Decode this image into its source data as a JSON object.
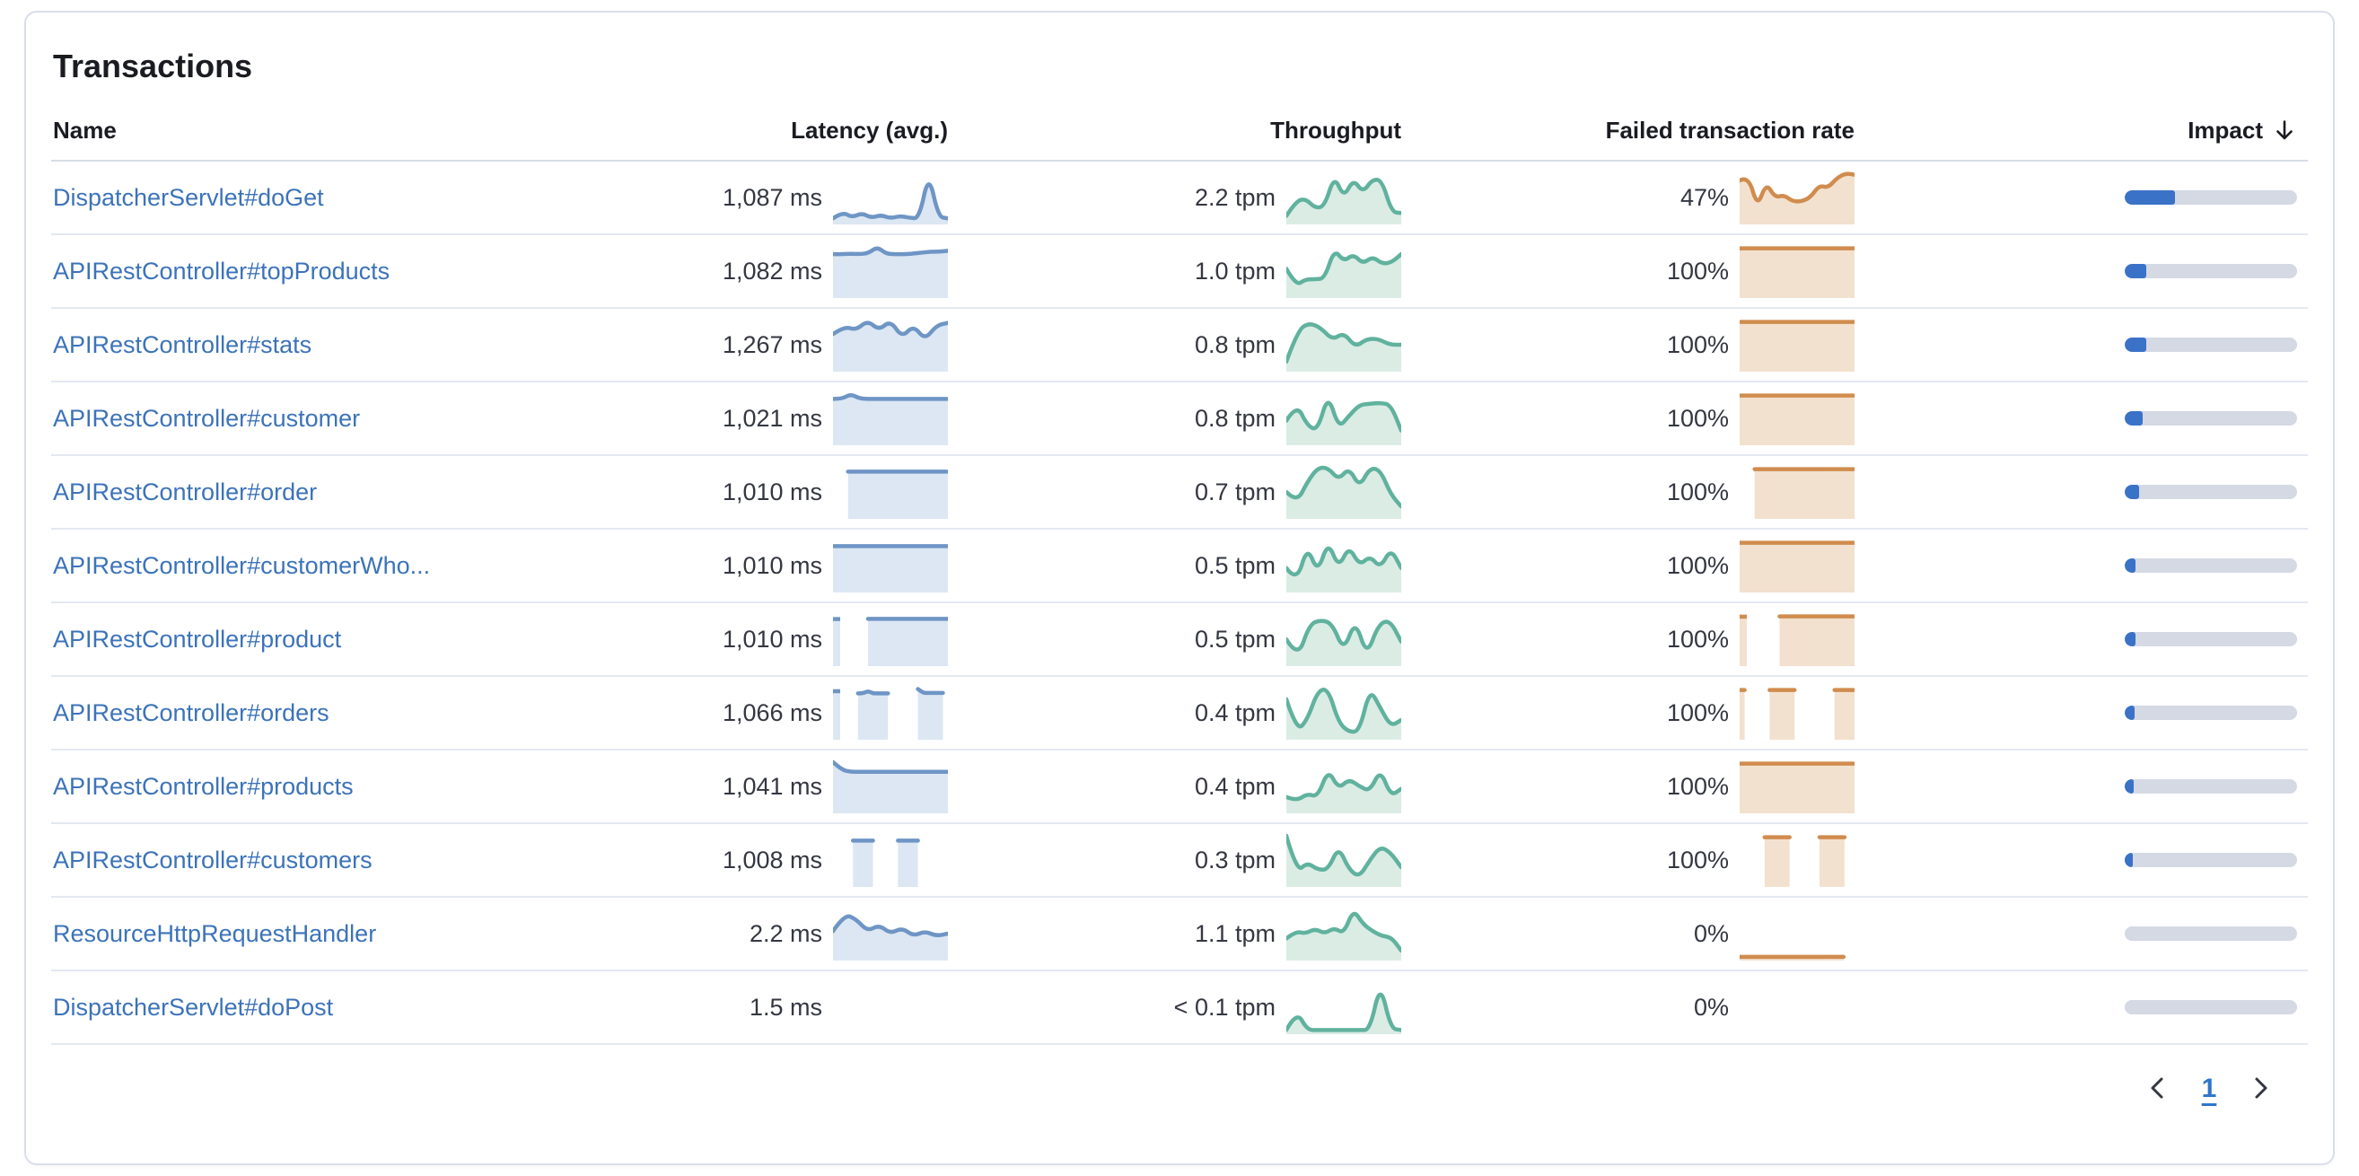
{
  "panel": {
    "title": "Transactions"
  },
  "table": {
    "columns": [
      {
        "label": "Name",
        "align": "left"
      },
      {
        "label": "Latency (avg.)",
        "align": "right"
      },
      {
        "label": "Throughput",
        "align": "right"
      },
      {
        "label": "Failed transaction rate",
        "align": "right"
      },
      {
        "label": "Impact",
        "align": "right",
        "sorted": "desc"
      }
    ],
    "rows": [
      {
        "name": "DispatcherServlet#doGet",
        "latency": "1,087 ms",
        "latency_spark": {
          "color": "blue",
          "values": [
            0.07,
            0.2,
            0.09,
            0.18,
            0.08,
            0.14,
            0.07,
            0.12,
            0.08,
            0.07,
            1.0,
            0.1,
            0.07
          ]
        },
        "throughput": "2.2 tpm",
        "throughput_spark": {
          "color": "green",
          "values": [
            0.12,
            0.42,
            0.48,
            0.28,
            0.32,
            0.95,
            0.5,
            0.88,
            0.6,
            0.88,
            0.85,
            0.2,
            0.18
          ]
        },
        "failed_rate": "47%",
        "failed_spark": {
          "color": "orange",
          "values": [
            0.85,
            0.95,
            0.3,
            0.8,
            0.5,
            0.55,
            0.42,
            0.42,
            0.5,
            0.75,
            0.7,
            0.9,
            1.0,
            0.97
          ]
        },
        "impact_pct": 29
      },
      {
        "name": "APIRestController#topProducts",
        "latency": "1,082 ms",
        "latency_spark": {
          "color": "blue",
          "values": [
            0.85,
            0.85,
            0.86,
            0.85,
            0.87,
            1.0,
            0.86,
            0.85,
            0.85,
            0.86,
            0.88,
            0.9,
            0.9,
            0.92
          ]
        },
        "throughput": "1.0 tpm",
        "throughput_spark": {
          "color": "green",
          "values": [
            0.55,
            0.2,
            0.33,
            0.33,
            0.35,
            0.95,
            0.7,
            0.85,
            0.65,
            0.8,
            0.65,
            0.68,
            0.85
          ]
        },
        "failed_rate": "100%",
        "failed_spark": {
          "color": "orange",
          "values": [
            0.97,
            0.97,
            0.97,
            0.97,
            0.97,
            0.97,
            0.97,
            0.97,
            0.97,
            0.97,
            0.97,
            0.97,
            0.97,
            0.97
          ]
        },
        "impact_pct": 12.5
      },
      {
        "name": "APIRestController#stats",
        "latency": "1,267 ms",
        "latency_spark": {
          "color": "blue",
          "values": [
            0.72,
            0.88,
            0.8,
            1.0,
            0.8,
            1.0,
            0.65,
            0.9,
            0.6,
            0.9,
            0.95
          ]
        },
        "throughput": "0.8 tpm",
        "throughput_spark": {
          "color": "green",
          "values": [
            0.15,
            0.8,
            0.95,
            0.85,
            0.6,
            0.75,
            0.45,
            0.62,
            0.62,
            0.5,
            0.5
          ]
        },
        "failed_rate": "100%",
        "failed_spark": {
          "color": "orange",
          "values": [
            0.97,
            0.97,
            0.97,
            0.97,
            0.97,
            0.97,
            0.97,
            0.97,
            0.97,
            0.97,
            0.97,
            0.97,
            0.97,
            0.97
          ]
        },
        "impact_pct": 12.5
      },
      {
        "name": "APIRestController#customer",
        "latency": "1,021 ms",
        "latency_spark": {
          "color": "blue",
          "values": [
            0.9,
            0.9,
            1.0,
            0.91,
            0.9,
            0.9,
            0.9,
            0.9,
            0.9,
            0.9,
            0.9,
            0.9,
            0.9,
            0.9
          ]
        },
        "throughput": "0.8 tpm",
        "throughput_spark": {
          "color": "green",
          "values": [
            0.45,
            0.8,
            0.35,
            0.25,
            1.0,
            0.3,
            0.55,
            0.78,
            0.8,
            0.82,
            0.78,
            0.25
          ]
        },
        "failed_rate": "100%",
        "failed_spark": {
          "color": "orange",
          "values": [
            0.97,
            0.97,
            0.97,
            0.97,
            0.97,
            0.97,
            0.97,
            0.97,
            0.97,
            0.97,
            0.97,
            0.97,
            0.97,
            0.97
          ]
        },
        "impact_pct": 10.5
      },
      {
        "name": "APIRestController#order",
        "latency": "1,010 ms",
        "latency_spark": {
          "color": "blue",
          "values": [
            null,
            null,
            null,
            0.92,
            0.92,
            0.92,
            0.92,
            0.92,
            0.92,
            0.92,
            0.92,
            0.92,
            0.92,
            0.92,
            0.92,
            0.92,
            0.92,
            0.92,
            0.92,
            0.92,
            0.92,
            0.92,
            0.92,
            0.92
          ]
        },
        "throughput": "0.7 tpm",
        "throughput_spark": {
          "color": "green",
          "values": [
            0.5,
            0.28,
            0.7,
            1.0,
            1.0,
            0.75,
            1.0,
            0.6,
            1.0,
            0.95,
            0.45,
            0.2
          ]
        },
        "failed_rate": "100%",
        "failed_spark": {
          "color": "orange",
          "values": [
            null,
            null,
            null,
            0.97,
            0.97,
            0.97,
            0.97,
            0.97,
            0.97,
            0.97,
            0.97,
            0.97,
            0.97,
            0.97,
            0.97,
            0.97,
            0.97,
            0.97,
            0.97,
            0.97,
            0.97,
            0.97,
            0.97,
            0.97
          ]
        },
        "impact_pct": 8.5
      },
      {
        "name": "APIRestController#customerWho...",
        "latency": "1,010 ms",
        "latency_spark": {
          "color": "blue",
          "values": [
            0.9,
            0.9,
            0.9,
            0.9,
            0.9,
            0.9,
            0.9,
            0.9,
            0.9,
            0.9,
            0.9,
            0.9,
            0.9,
            0.9
          ]
        },
        "throughput": "0.5 tpm",
        "throughput_spark": {
          "color": "green",
          "values": [
            0.45,
            0.15,
            0.9,
            0.35,
            1.0,
            0.45,
            0.9,
            0.5,
            0.7,
            0.45,
            0.85,
            0.45
          ]
        },
        "failed_rate": "100%",
        "failed_spark": {
          "color": "orange",
          "values": [
            0.97,
            0.97,
            0.97,
            0.97,
            0.97,
            0.97,
            0.97,
            0.97,
            0.97,
            0.97,
            0.97,
            0.97,
            0.97,
            0.97
          ]
        },
        "impact_pct": 6.5
      },
      {
        "name": "APIRestController#product",
        "latency": "1,010 ms",
        "latency_spark": {
          "color": "blue",
          "values": [
            0.92,
            null,
            null,
            null,
            null,
            null,
            null,
            0.92,
            0.92,
            0.92,
            0.92,
            0.92,
            0.92,
            0.92,
            0.92,
            0.92,
            0.92,
            0.92,
            0.92,
            0.92,
            0.92,
            0.92,
            0.92,
            0.92
          ]
        },
        "throughput": "0.5 tpm",
        "throughput_spark": {
          "color": "green",
          "values": [
            0.5,
            0.1,
            0.8,
            0.9,
            0.82,
            0.25,
            0.9,
            0.15,
            0.8,
            0.9,
            0.45
          ]
        },
        "failed_rate": "100%",
        "failed_spark": {
          "color": "orange",
          "values": [
            0.97,
            null,
            null,
            null,
            null,
            null,
            null,
            null,
            0.97,
            0.97,
            0.97,
            0.97,
            0.97,
            0.97,
            0.97,
            0.97,
            0.97,
            0.97,
            0.97,
            0.97,
            0.97,
            0.97,
            0.97,
            0.97
          ]
        },
        "impact_pct": 6
      },
      {
        "name": "APIRestController#orders",
        "latency": "1,066 ms",
        "latency_spark": {
          "color": "blue",
          "values": [
            0.95,
            null,
            null,
            null,
            null,
            0.9,
            0.9,
            0.95,
            0.9,
            0.9,
            0.9,
            0.9,
            null,
            null,
            null,
            null,
            null,
            0.99,
            0.91,
            0.91,
            0.91,
            0.91,
            0.91,
            null
          ]
        },
        "throughput": "0.4 tpm",
        "throughput_spark": {
          "color": "green",
          "values": [
            0.78,
            0.12,
            0.35,
            0.95,
            1.0,
            0.3,
            0.1,
            0.12,
            1.0,
            0.6,
            0.22,
            0.35
          ]
        },
        "failed_rate": "100%",
        "failed_spark": {
          "color": "orange",
          "values": [
            0.97,
            0.97,
            null,
            null,
            null,
            null,
            0.97,
            0.97,
            0.97,
            0.97,
            0.97,
            0.97,
            null,
            null,
            null,
            null,
            null,
            null,
            null,
            0.97,
            0.97,
            0.97,
            0.97,
            0.97
          ]
        },
        "impact_pct": 5.5
      },
      {
        "name": "APIRestController#products",
        "latency": "1,041 ms",
        "latency_spark": {
          "color": "blue",
          "values": [
            1.0,
            0.84,
            0.8,
            0.8,
            0.8,
            0.8,
            0.8,
            0.8,
            0.8,
            0.8,
            0.8,
            0.8,
            0.8,
            0.8
          ]
        },
        "throughput": "0.4 tpm",
        "throughput_spark": {
          "color": "green",
          "values": [
            0.28,
            0.2,
            0.35,
            0.28,
            0.85,
            0.45,
            0.65,
            0.5,
            0.4,
            0.85,
            0.3,
            0.45
          ]
        },
        "failed_rate": "100%",
        "failed_spark": {
          "color": "orange",
          "values": [
            0.97,
            0.97,
            0.97,
            0.97,
            0.97,
            0.97,
            0.97,
            0.97,
            0.97,
            0.97,
            0.97,
            0.97,
            0.97,
            0.97
          ]
        },
        "impact_pct": 5
      },
      {
        "name": "APIRestController#customers",
        "latency": "1,008 ms",
        "latency_spark": {
          "color": "blue",
          "values": [
            null,
            null,
            null,
            null,
            0.9,
            0.9,
            0.9,
            0.9,
            0.9,
            null,
            null,
            null,
            null,
            0.9,
            0.9,
            0.9,
            0.9,
            0.9,
            null,
            null,
            null,
            null,
            null,
            null
          ]
        },
        "throughput": "0.3 tpm",
        "throughput_spark": {
          "color": "green",
          "values": [
            1.0,
            0.25,
            0.45,
            0.3,
            0.3,
            0.78,
            0.3,
            0.15,
            0.5,
            0.78,
            0.65,
            0.35
          ]
        },
        "failed_rate": "100%",
        "failed_spark": {
          "color": "orange",
          "values": [
            null,
            null,
            null,
            null,
            null,
            0.97,
            0.97,
            0.97,
            0.97,
            0.97,
            0.97,
            null,
            null,
            null,
            null,
            null,
            0.97,
            0.97,
            0.97,
            0.97,
            0.97,
            0.97,
            null,
            null
          ]
        },
        "impact_pct": 4.5
      },
      {
        "name": "ResourceHttpRequestHandler",
        "latency": "2.2 ms",
        "latency_spark": {
          "color": "blue",
          "values": [
            0.55,
            0.9,
            0.8,
            0.55,
            0.68,
            0.5,
            0.62,
            0.45,
            0.55,
            0.45,
            0.5
          ]
        },
        "throughput": "1.1 tpm",
        "throughput_spark": {
          "color": "green",
          "values": [
            0.4,
            0.55,
            0.5,
            0.6,
            0.5,
            0.62,
            0.5,
            1.0,
            0.7,
            0.55,
            0.45,
            0.42,
            0.15
          ]
        },
        "failed_rate": "0%",
        "failed_spark": {
          "color": "orange",
          "values": [
            0.02,
            0.02,
            0.02,
            0.02,
            0.02,
            0.02,
            0.02,
            0.02,
            0.02,
            0.02,
            0.02,
            0.02,
            0.02,
            0.02,
            0.02,
            0.02,
            0.02,
            0.02,
            0.02,
            0.02,
            null,
            null
          ]
        },
        "impact_pct": 0
      },
      {
        "name": "DispatcherServlet#doPost",
        "latency": "1.5 ms",
        "latency_spark": null,
        "throughput": "< 0.1 tpm",
        "throughput_spark": {
          "color": "green",
          "values": [
            0.03,
            0.42,
            0.03,
            0.03,
            0.03,
            0.03,
            0.03,
            0.03,
            0.03,
            1.0,
            0.06,
            0.03
          ]
        },
        "failed_rate": "0%",
        "failed_spark": null,
        "impact_pct": 0
      }
    ]
  },
  "pagination": {
    "current_page": "1"
  },
  "palette": {
    "link_blue": "#3c73b9",
    "impact_fill": "#3a72c8",
    "impact_track": "#d4d9e4",
    "header_text": "#1a1c21",
    "value_text": "#343741",
    "sparks": {
      "blue": {
        "line": "#6e95c5",
        "fill": "#dce7f3"
      },
      "green": {
        "line": "#60b29e",
        "fill": "#dbece5"
      },
      "orange": {
        "line": "#d08c4e",
        "fill": "#f2e1ce"
      }
    }
  }
}
